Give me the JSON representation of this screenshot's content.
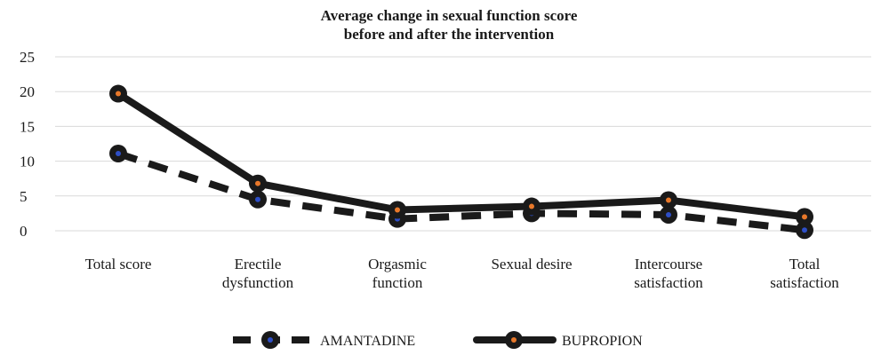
{
  "chart_data": {
    "type": "line",
    "title": "Average change in sexual function score before and after the intervention",
    "title_lines": [
      "Average change in sexual function score",
      "before and after the intervention"
    ],
    "categories": [
      [
        "Total score"
      ],
      [
        "Erectile",
        "dysfunction"
      ],
      [
        "Orgasmic",
        "function"
      ],
      [
        "Sexual desire"
      ],
      [
        "Intercourse",
        "satisfaction"
      ],
      [
        "Total",
        "satisfaction"
      ]
    ],
    "category_names": [
      "Total score",
      "Erectile dysfunction",
      "Orgasmic function",
      "Sexual desire",
      "Intercourse satisfaction",
      "Total satisfaction"
    ],
    "ylim": [
      0,
      25
    ],
    "yticks": [
      0,
      5,
      10,
      15,
      20,
      25
    ],
    "grid": true,
    "legend_position": "bottom",
    "xlabel": "",
    "ylabel": "",
    "series": [
      {
        "name": "AMANTADINE",
        "values": [
          11.1,
          4.5,
          1.7,
          2.5,
          2.3,
          0.1
        ],
        "line_style": "dashed",
        "line_color": "#1a1a1a",
        "marker_color": "#2e4fc7"
      },
      {
        "name": "BUPROPION",
        "values": [
          19.7,
          6.8,
          3.0,
          3.5,
          4.4,
          2.0
        ],
        "line_style": "solid",
        "line_color": "#1a1a1a",
        "marker_color": "#e8782a"
      }
    ]
  }
}
